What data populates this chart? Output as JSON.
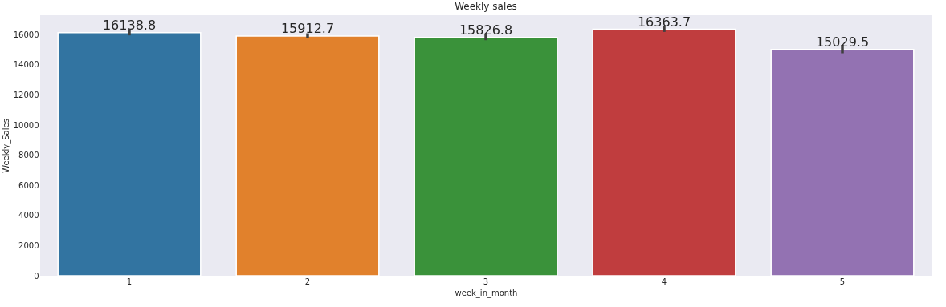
{
  "chart_data": {
    "type": "bar",
    "title": "Weekly sales",
    "xlabel": "week_in_month",
    "ylabel": "Weekly_Sales",
    "categories": [
      "1",
      "2",
      "3",
      "4",
      "5"
    ],
    "values": [
      16138.8,
      15912.7,
      15826.8,
      16363.7,
      15029.5
    ],
    "colors": [
      "#3274a1",
      "#e1812c",
      "#3a923a",
      "#c03d3e",
      "#9372b2"
    ],
    "errors": [
      [
        15960,
        16370
      ],
      [
        15760,
        16100
      ],
      [
        15640,
        16085
      ],
      [
        16190,
        16600
      ],
      [
        14770,
        15330
      ]
    ],
    "data_labels": true,
    "grid": false,
    "legend": false,
    "ylim": [
      0,
      17300
    ],
    "yticks": [
      0,
      2000,
      4000,
      6000,
      8000,
      10000,
      12000,
      14000,
      16000
    ]
  }
}
